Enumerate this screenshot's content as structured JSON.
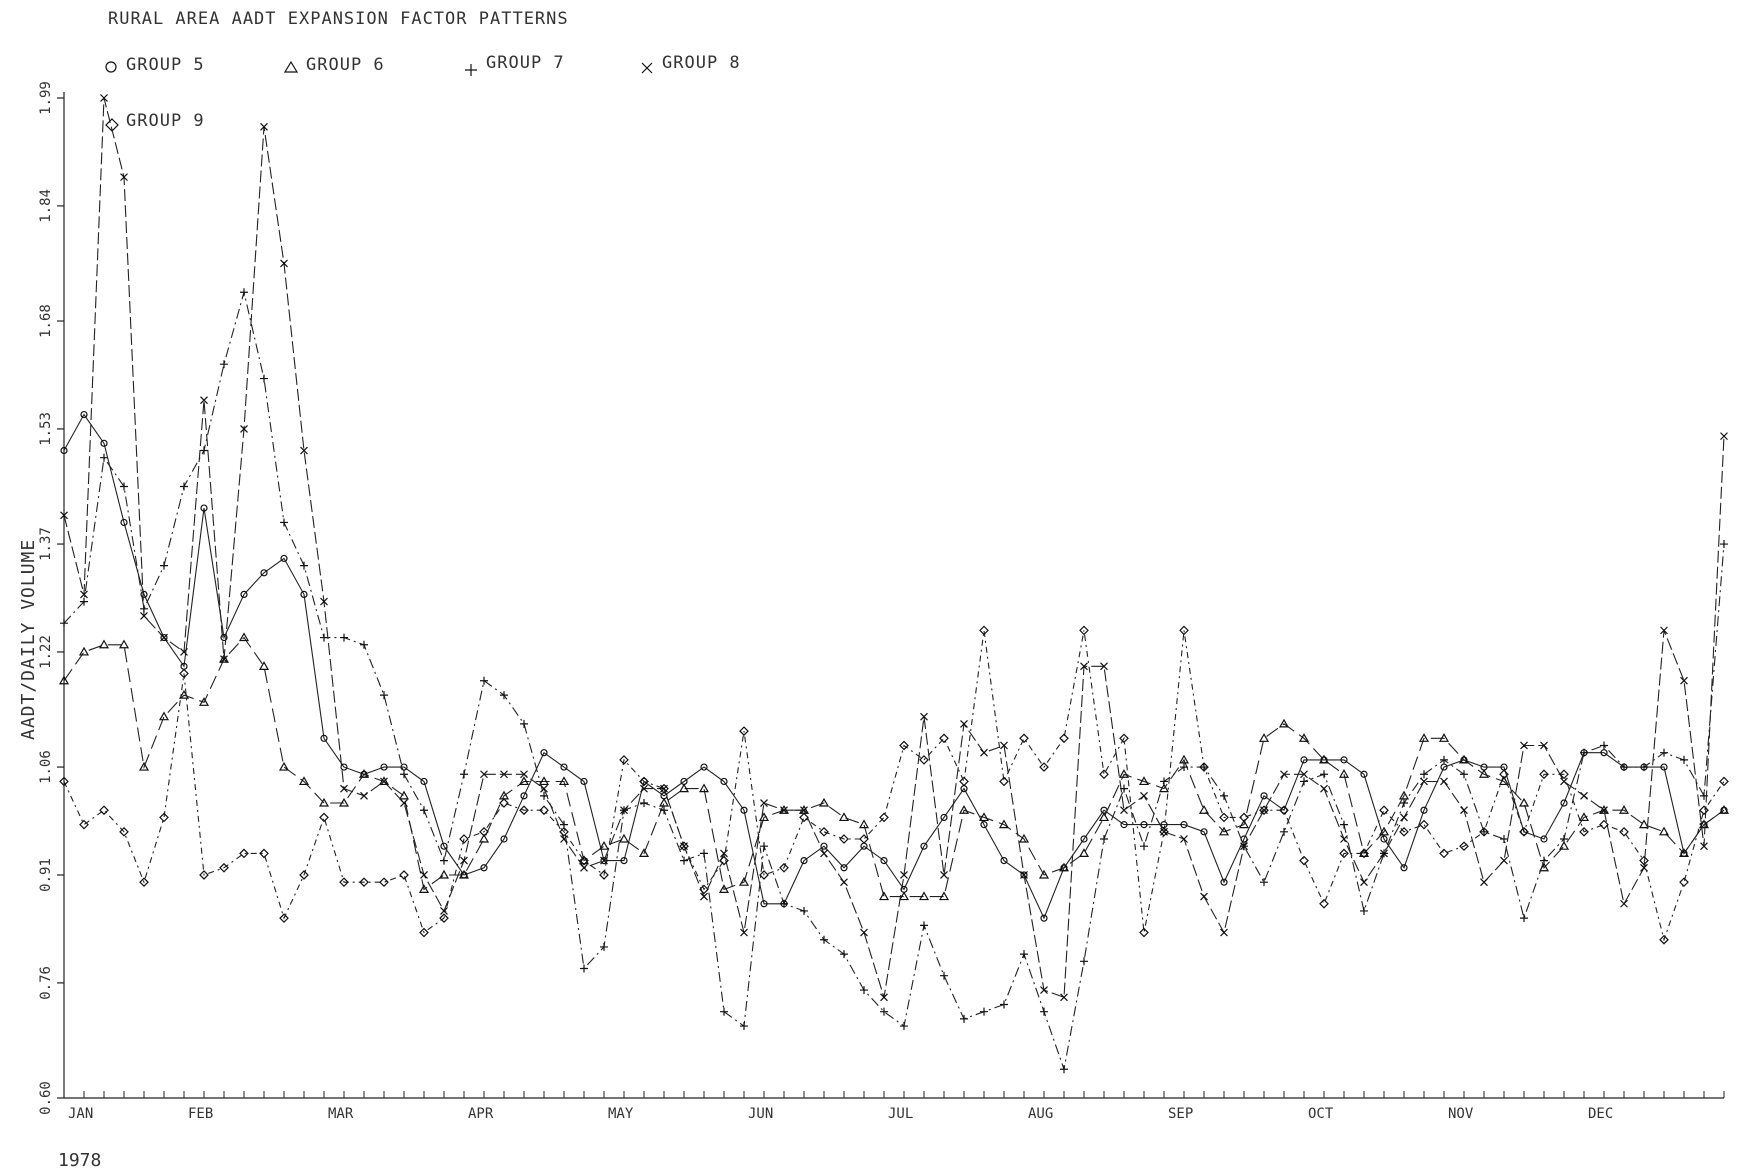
{
  "chart_data": {
    "type": "line",
    "title": "RURAL AREA AADT EXPANSION FACTOR PATTERNS",
    "ylabel": "AADT/DAILY VOLUME",
    "xlabel": "1978",
    "ylim": [
      0.6,
      1.99
    ],
    "yticks": [
      "0.60",
      "0.76",
      "0.91",
      "1.06",
      "1.22",
      "1.37",
      "1.53",
      "1.68",
      "1.84",
      "1.99"
    ],
    "month_labels": [
      "JAN",
      "FEB",
      "MAR",
      "APR",
      "MAY",
      "JUN",
      "JUL",
      "AUG",
      "SEP",
      "OCT",
      "NOV",
      "DEC"
    ],
    "n_weeks": 84,
    "series": [
      {
        "name": "GROUP 5",
        "marker": "circle",
        "values": [
          1.5,
          1.55,
          1.51,
          1.4,
          1.3,
          1.24,
          1.2,
          1.42,
          1.24,
          1.3,
          1.33,
          1.35,
          1.3,
          1.1,
          1.06,
          1.05,
          1.06,
          1.06,
          1.04,
          0.95,
          0.91,
          0.92,
          0.96,
          1.02,
          1.08,
          1.06,
          1.04,
          0.93,
          0.93,
          1.04,
          1.02,
          1.04,
          1.06,
          1.04,
          1.0,
          0.87,
          0.87,
          0.93,
          0.95,
          0.92,
          0.95,
          0.93,
          0.89,
          0.95,
          0.99,
          1.03,
          0.98,
          0.93,
          0.91,
          0.85,
          0.92,
          0.96,
          1.0,
          0.98,
          0.98,
          0.98,
          0.98,
          0.97,
          0.9,
          0.96,
          1.02,
          1.0,
          1.07,
          1.07,
          1.07,
          1.05,
          0.96,
          0.92,
          1.0,
          1.06,
          1.07,
          1.06,
          1.06,
          0.97,
          0.96,
          1.01,
          1.08,
          1.08,
          1.06,
          1.06,
          1.06,
          0.94,
          0.98,
          1.0
        ]
      },
      {
        "name": "GROUP 6",
        "marker": "triangle",
        "values": [
          1.18,
          1.22,
          1.23,
          1.23,
          1.06,
          1.13,
          1.16,
          1.15,
          1.21,
          1.24,
          1.2,
          1.06,
          1.04,
          1.01,
          1.01,
          1.05,
          1.04,
          1.02,
          0.89,
          0.91,
          0.91,
          0.96,
          1.02,
          1.04,
          1.04,
          1.04,
          0.93,
          0.95,
          0.96,
          0.94,
          1.01,
          1.03,
          1.03,
          0.89,
          0.9,
          0.99,
          1.0,
          1.0,
          1.01,
          0.99,
          0.98,
          0.88,
          0.88,
          0.88,
          0.88,
          1.0,
          0.99,
          0.98,
          0.96,
          0.91,
          0.92,
          0.94,
          0.99,
          1.05,
          1.04,
          1.03,
          1.07,
          1.0,
          0.97,
          0.98,
          1.1,
          1.12,
          1.1,
          1.07,
          1.05,
          0.94,
          0.97,
          1.02,
          1.1,
          1.1,
          1.07,
          1.05,
          1.04,
          1.01,
          0.92,
          0.95,
          0.99,
          1.0,
          1.0,
          0.98,
          0.97,
          0.94,
          0.98,
          1.0
        ]
      },
      {
        "name": "GROUP 7",
        "marker": "plus",
        "values": [
          1.26,
          1.29,
          1.49,
          1.45,
          1.28,
          1.34,
          1.45,
          1.5,
          1.62,
          1.72,
          1.6,
          1.4,
          1.34,
          1.24,
          1.24,
          1.23,
          1.16,
          1.05,
          1.0,
          0.93,
          1.05,
          1.18,
          1.16,
          1.12,
          1.02,
          0.98,
          0.78,
          0.81,
          1.0,
          1.01,
          1.0,
          0.93,
          0.94,
          0.72,
          0.7,
          0.95,
          0.87,
          0.86,
          0.82,
          0.8,
          0.75,
          0.72,
          0.7,
          0.84,
          0.77,
          0.71,
          0.72,
          0.73,
          0.8,
          0.72,
          0.64,
          0.79,
          0.96,
          1.03,
          0.95,
          1.04,
          1.06,
          1.06,
          1.02,
          0.95,
          0.9,
          0.97,
          1.04,
          1.05,
          0.98,
          0.86,
          0.94,
          1.01,
          1.05,
          1.07,
          1.05,
          0.97,
          0.96,
          0.85,
          0.93,
          0.96,
          1.08,
          1.09,
          1.06,
          1.06,
          1.08,
          1.07,
          1.02,
          1.37
        ]
      },
      {
        "name": "GROUP 8",
        "marker": "x",
        "values": [
          1.41,
          1.3,
          1.99,
          1.88,
          1.27,
          1.24,
          1.22,
          1.57,
          1.21,
          1.53,
          1.95,
          1.76,
          1.5,
          1.29,
          1.03,
          1.02,
          1.04,
          1.01,
          0.91,
          0.86,
          0.93,
          1.05,
          1.05,
          1.05,
          1.03,
          0.96,
          0.92,
          0.93,
          1.0,
          1.03,
          1.03,
          0.95,
          0.88,
          0.94,
          0.83,
          1.01,
          1.0,
          1.0,
          0.94,
          0.9,
          0.83,
          0.74,
          0.91,
          1.13,
          0.91,
          1.12,
          1.08,
          1.09,
          0.91,
          0.75,
          0.74,
          1.2,
          1.2,
          1.0,
          1.02,
          0.97,
          0.96,
          0.88,
          0.83,
          0.95,
          1.0,
          1.05,
          1.05,
          1.03,
          0.96,
          0.9,
          0.94,
          0.99,
          1.04,
          1.04,
          1.0,
          0.9,
          0.93,
          1.09,
          1.09,
          1.04,
          1.02,
          1.0,
          0.87,
          0.92,
          1.25,
          1.18,
          0.95,
          1.52
        ]
      },
      {
        "name": "GROUP 9",
        "marker": "diamond",
        "values": [
          1.04,
          0.98,
          1.0,
          0.97,
          0.9,
          0.99,
          1.19,
          0.91,
          0.92,
          0.94,
          0.94,
          0.85,
          0.91,
          0.99,
          0.9,
          0.9,
          0.9,
          0.91,
          0.83,
          0.85,
          0.96,
          0.97,
          1.01,
          1.0,
          1.0,
          0.97,
          0.93,
          0.91,
          1.07,
          1.04,
          1.03,
          0.95,
          0.89,
          0.93,
          1.11,
          0.91,
          0.92,
          0.99,
          0.97,
          0.96,
          0.96,
          0.99,
          1.09,
          1.07,
          1.1,
          1.04,
          1.25,
          1.04,
          1.1,
          1.06,
          1.1,
          1.25,
          1.05,
          1.1,
          0.83,
          0.97,
          1.25,
          1.06,
          0.99,
          0.99,
          1.0,
          1.0,
          0.93,
          0.87,
          0.94,
          0.94,
          1.0,
          0.97,
          0.98,
          0.94,
          0.95,
          0.97,
          1.05,
          0.97,
          1.05,
          1.05,
          0.97,
          0.98,
          0.97,
          0.93,
          0.82,
          0.9,
          1.0,
          1.04
        ]
      }
    ]
  }
}
